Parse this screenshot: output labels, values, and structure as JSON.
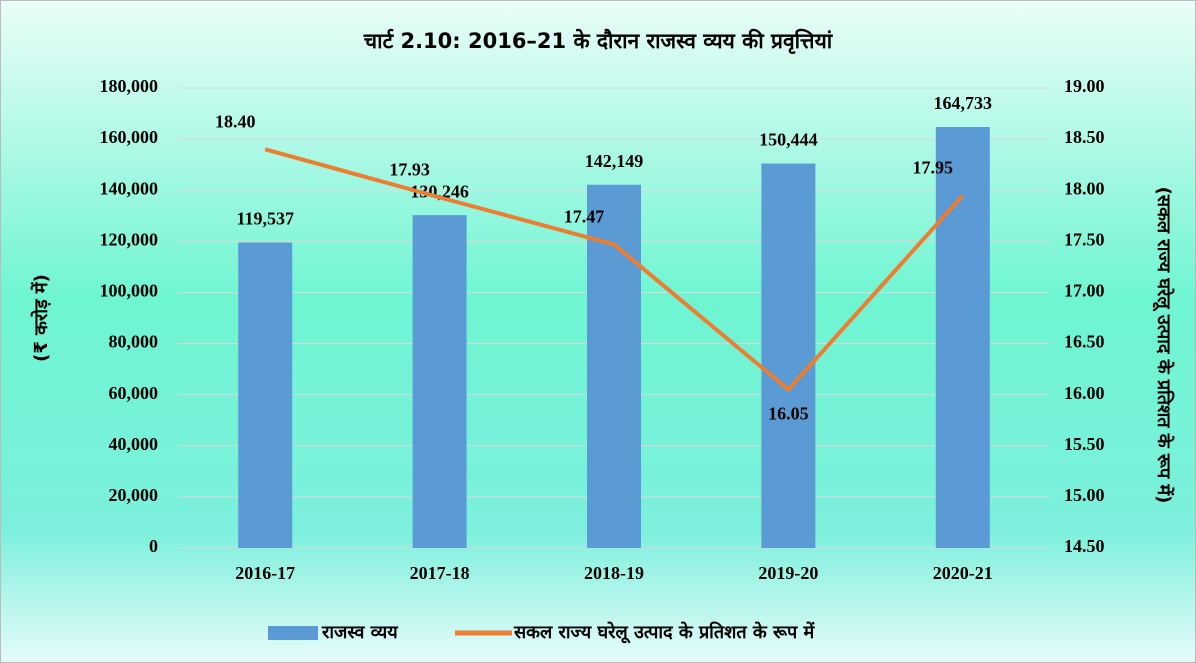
{
  "chart_data": {
    "type": "bar-line",
    "title": "चार्ट 2.10: 2016–21 के दौरान राजस्व व्यय की प्रवृत्तियां",
    "y_label": "(₹ करोड़ में)",
    "y2_label": "(सकल राज्य घरेलू उत्पाद के प्रतिशत के रूप में)",
    "categories": [
      "2016-17",
      "2017-18",
      "2018-19",
      "2019-20",
      "2020-21"
    ],
    "series": [
      {
        "name": "राजस्व व्यय",
        "type": "bar",
        "color": "#5b9bd5",
        "values": [
          119537,
          130246,
          142149,
          150444,
          164733
        ],
        "value_labels": [
          "119,537",
          "130,246",
          "142,149",
          "150,444",
          "164,733"
        ]
      },
      {
        "name": "सकल राज्य घरेलू उत्पाद के प्रतिशत के रूप में",
        "type": "line",
        "axis": "y2",
        "color": "#ed7d31",
        "values": [
          18.4,
          17.93,
          17.47,
          16.05,
          17.95
        ],
        "value_labels": [
          "18.40",
          "17.93",
          "17.47",
          "16.05",
          "17.95"
        ]
      }
    ],
    "ylim": [
      0,
      180000
    ],
    "yticks": [
      0,
      {
        "value": 20000,
        "label": "20,000"
      },
      {
        "value": 40000,
        "label": "40,000"
      },
      {
        "value": 60000,
        "label": "60,000"
      },
      {
        "value": 80000,
        "label": "80,000"
      },
      {
        "value": 100000,
        "label": "100,000"
      },
      {
        "value": 120000,
        "label": "120,000"
      },
      {
        "value": 140000,
        "label": "140,000"
      },
      {
        "value": 160000,
        "label": "160,000"
      },
      {
        "value": 180000,
        "label": "180,000"
      }
    ],
    "y2lim": [
      14.5,
      19
    ],
    "y2ticks": [
      {
        "value": 14.5,
        "label": "14.50"
      },
      {
        "value": 15,
        "label": "15.00"
      },
      {
        "value": 15.5,
        "label": "15.50"
      },
      {
        "value": 16,
        "label": "16.00"
      },
      {
        "value": 16.5,
        "label": "16.50"
      },
      {
        "value": 17,
        "label": "17.00"
      },
      {
        "value": 17.5,
        "label": "17.50"
      },
      {
        "value": 18,
        "label": "18.00"
      },
      {
        "value": 18.5,
        "label": "18.50"
      },
      {
        "value": 19,
        "label": "19.00"
      }
    ],
    "grid": true,
    "legend": "bottom"
  }
}
